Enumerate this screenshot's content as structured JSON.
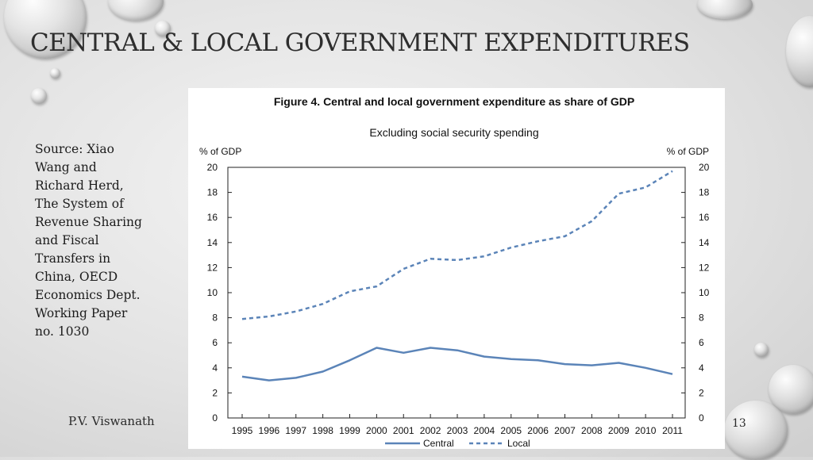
{
  "slide": {
    "title": "CENTRAL & LOCAL GOVERNMENT EXPENDITURES",
    "source_lines": [
      "Source: Xiao",
      "Wang and",
      "Richard Herd,",
      "The System of",
      "Revenue Sharing",
      "and Fiscal",
      "Transfers in",
      "China, OECD",
      "Economics Dept.",
      "Working Paper",
      "no. 1030"
    ],
    "author": "P.V. Viswanath",
    "page_number": "13"
  },
  "chart_data": {
    "type": "line",
    "title": "Figure 4. Central and local government expenditure as share of GDP",
    "subtitle": "Excluding social security spending",
    "ylabel_left": "% of GDP",
    "ylabel_right": "% of GDP",
    "ylim": [
      0,
      20
    ],
    "yticks": [
      0,
      2,
      4,
      6,
      8,
      10,
      12,
      14,
      16,
      18,
      20
    ],
    "x": [
      "1995",
      "1996",
      "1997",
      "1998",
      "1999",
      "2000",
      "2001",
      "2002",
      "2003",
      "2004",
      "2005",
      "2006",
      "2007",
      "2008",
      "2009",
      "2010",
      "2011"
    ],
    "series": [
      {
        "name": "Central",
        "style": "solid",
        "color": "#5b84b8",
        "values": [
          3.3,
          3.0,
          3.2,
          3.7,
          4.6,
          5.6,
          5.2,
          5.6,
          5.4,
          4.9,
          4.7,
          4.6,
          4.3,
          4.2,
          4.4,
          4.0,
          3.5
        ]
      },
      {
        "name": "Local",
        "style": "dashed",
        "color": "#5b84b8",
        "values": [
          7.9,
          8.1,
          8.5,
          9.1,
          10.1,
          10.5,
          11.9,
          12.7,
          12.6,
          12.9,
          13.6,
          14.1,
          14.5,
          15.7,
          17.9,
          18.4,
          19.7
        ]
      }
    ],
    "legend": "bottom"
  }
}
